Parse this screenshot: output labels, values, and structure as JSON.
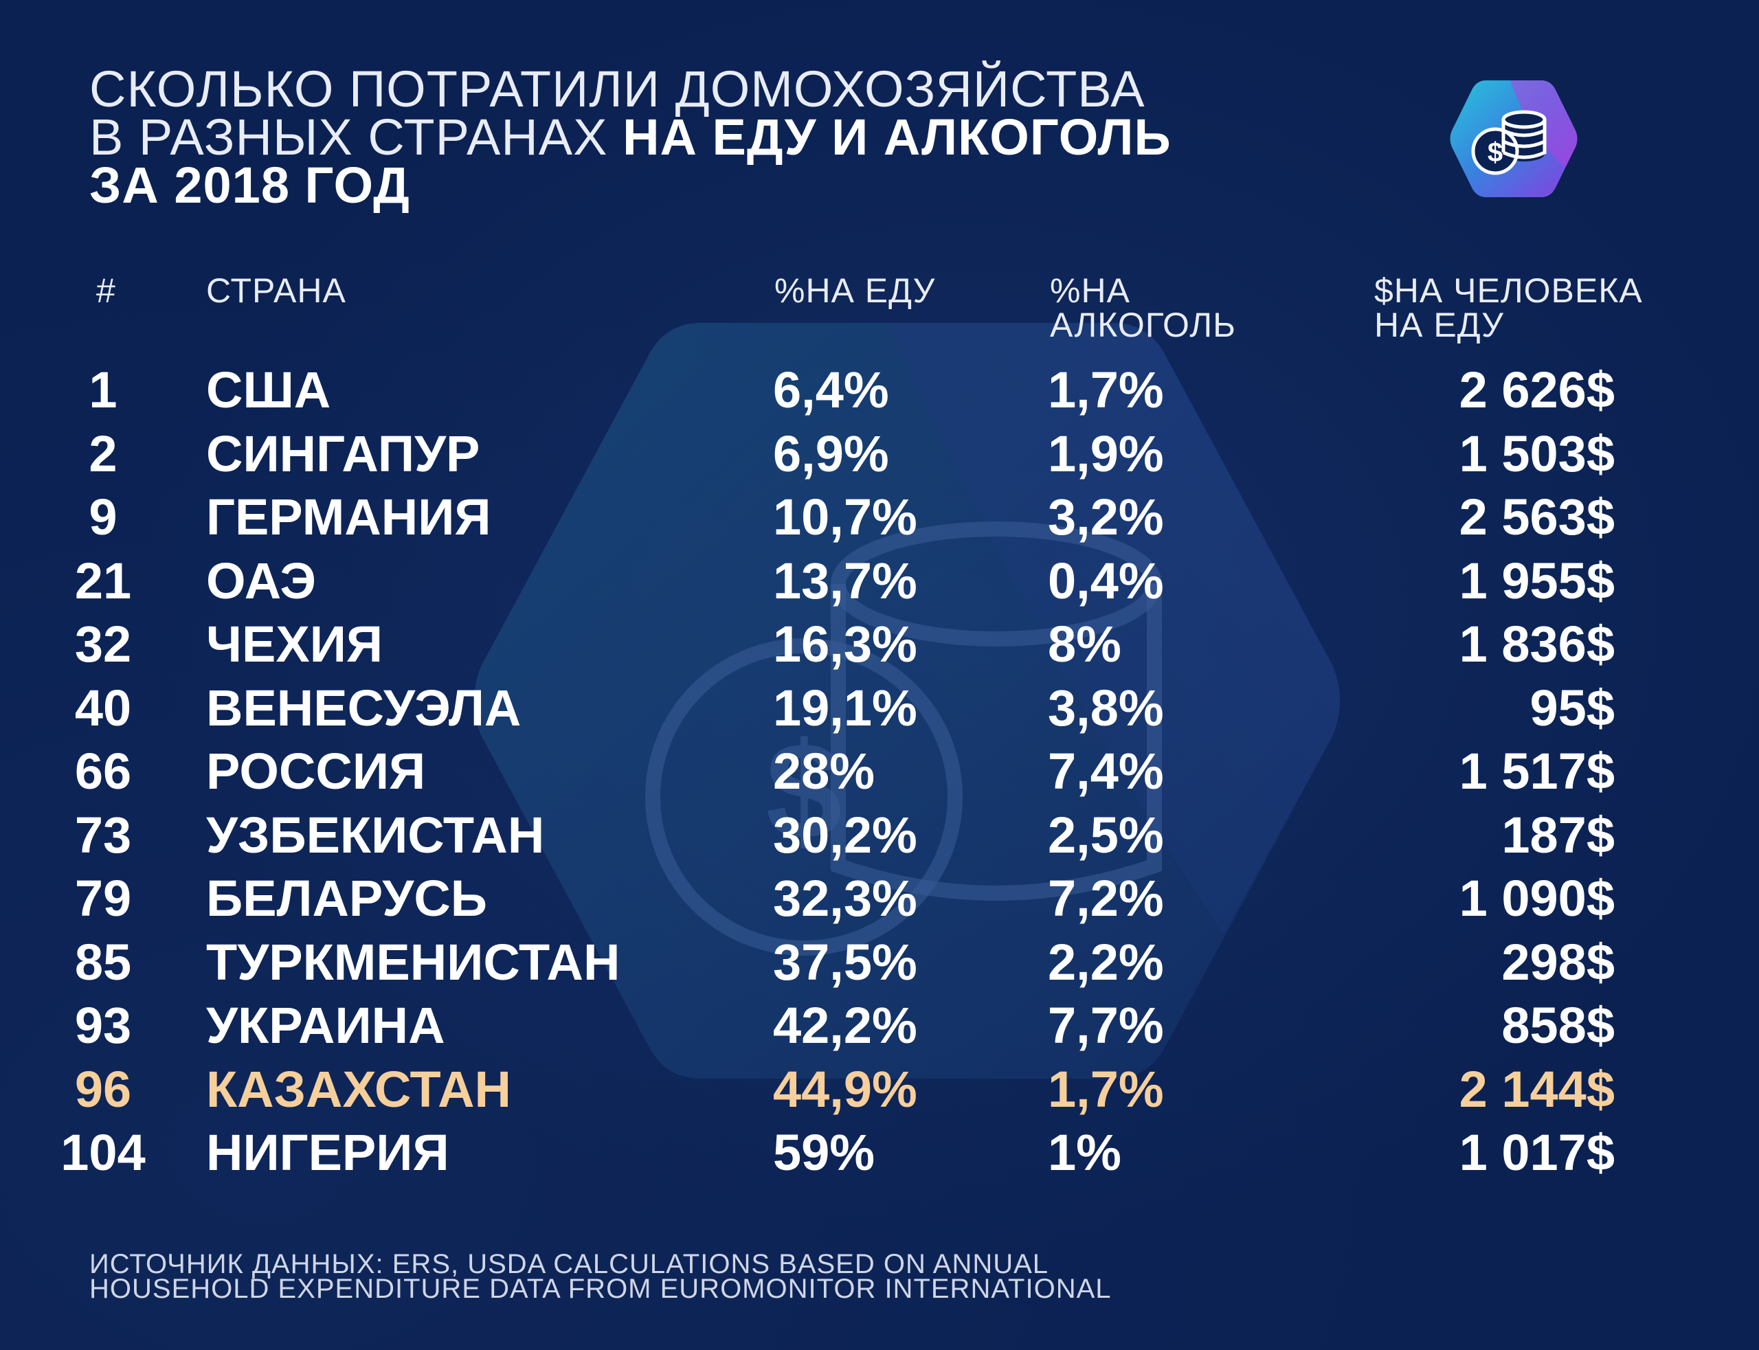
{
  "title": {
    "line1": "СКОЛЬКО ПОТРАТИЛИ ДОМОХОЗЯЙСТВА",
    "line2_thin": "В РАЗНЫХ СТРАНАХ ",
    "line2_bold": "НА ЕДУ И АЛКОГОЛЬ",
    "line3": "ЗА 2018 ГОД"
  },
  "logo_icon": "coins-dollar-icon",
  "headers": {
    "rank": "#",
    "country": "СТРАНА",
    "food_pct": "%НА ЕДУ",
    "alcohol_pct_1": "%НА",
    "alcohol_pct_2": "АЛКОГОЛЬ",
    "spend_1": "$НА ЧЕЛОВЕКА",
    "spend_2": "НА ЕДУ"
  },
  "colors": {
    "background": "#0b2152",
    "highlight": "#f6cf9b",
    "text": "#ffffff"
  },
  "chart_data": {
    "type": "table",
    "columns": [
      "#",
      "СТРАНА",
      "%НА ЕДУ",
      "%НА АЛКОГОЛЬ",
      "$НА ЧЕЛОВЕКА НА ЕДУ"
    ],
    "highlighted_row": "КАЗАХСТАН",
    "rows": [
      {
        "rank": "1",
        "country": "США",
        "food": "6,4%",
        "alcohol": "1,7%",
        "spend": "2 626$"
      },
      {
        "rank": "2",
        "country": "СИНГАПУР",
        "food": "6,9%",
        "alcohol": "1,9%",
        "spend": "1 503$"
      },
      {
        "rank": "9",
        "country": "ГЕРМАНИЯ",
        "food": "10,7%",
        "alcohol": "3,2%",
        "spend": "2 563$"
      },
      {
        "rank": "21",
        "country": "ОАЭ",
        "food": "13,7%",
        "alcohol": "0,4%",
        "spend": "1 955$"
      },
      {
        "rank": "32",
        "country": "ЧЕХИЯ",
        "food": "16,3%",
        "alcohol": "8%",
        "spend": "1 836$"
      },
      {
        "rank": "40",
        "country": "ВЕНЕСУЭЛА",
        "food": "19,1%",
        "alcohol": "3,8%",
        "spend": "95$"
      },
      {
        "rank": "66",
        "country": "РОССИЯ",
        "food": "28%",
        "alcohol": "7,4%",
        "spend": "1 517$"
      },
      {
        "rank": "73",
        "country": "УЗБЕКИСТАН",
        "food": "30,2%",
        "alcohol": "2,5%",
        "spend": "187$"
      },
      {
        "rank": "79",
        "country": "БЕЛАРУСЬ",
        "food": "32,3%",
        "alcohol": "7,2%",
        "spend": "1 090$"
      },
      {
        "rank": "85",
        "country": "ТУРКМЕНИСТАН",
        "food": "37,5%",
        "alcohol": "2,2%",
        "spend": "298$"
      },
      {
        "rank": "93",
        "country": "УКРАИНА",
        "food": "42,2%",
        "alcohol": "7,7%",
        "spend": "858$"
      },
      {
        "rank": "96",
        "country": "КАЗАХСТАН",
        "food": "44,9%",
        "alcohol": "1,7%",
        "spend": "2 144$"
      },
      {
        "rank": "104",
        "country": "НИГЕРИЯ",
        "food": "59%",
        "alcohol": "1%",
        "spend": "1 017$"
      }
    ]
  },
  "source": {
    "line1": "ИСТОЧНИК ДАННЫХ: ERS, USDA CALCULATIONS BASED ON ANNUAL",
    "line2": "HOUSEHOLD EXPENDITURE DATA FROM EUROMONITOR INTERNATIONAL"
  }
}
